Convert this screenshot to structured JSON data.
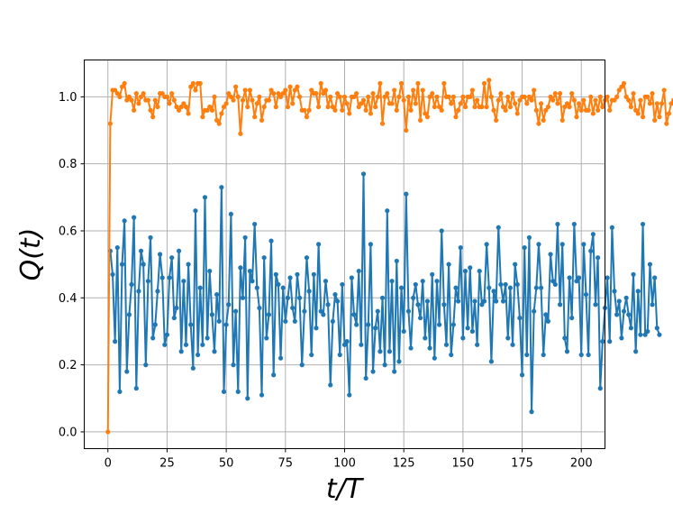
{
  "chart_data": {
    "type": "line",
    "title": "",
    "xlabel": "t/T",
    "ylabel": "Q(t)",
    "xlim": [
      -10,
      210
    ],
    "ylim": [
      -0.05,
      1.11
    ],
    "xticks": [
      0,
      25,
      50,
      75,
      100,
      125,
      150,
      175,
      200
    ],
    "yticks": [
      0.0,
      0.2,
      0.4,
      0.6,
      0.8,
      1.0
    ],
    "xtick_labels": [
      "0",
      "25",
      "50",
      "75",
      "100",
      "125",
      "150",
      "175",
      "200"
    ],
    "ytick_labels": [
      "0.0",
      "0.2",
      "0.4",
      "0.6",
      "0.8",
      "1.0"
    ],
    "grid": true,
    "markers": true,
    "series": [
      {
        "color": "#1f77b4",
        "x_start": 1,
        "x_step": 1,
        "values": [
          0.54,
          0.47,
          0.27,
          0.55,
          0.12,
          0.5,
          0.63,
          0.18,
          0.35,
          0.44,
          0.64,
          0.13,
          0.42,
          0.54,
          0.5,
          0.2,
          0.45,
          0.58,
          0.28,
          0.32,
          0.42,
          0.53,
          0.46,
          0.26,
          0.29,
          0.46,
          0.52,
          0.34,
          0.37,
          0.54,
          0.24,
          0.45,
          0.26,
          0.5,
          0.32,
          0.19,
          0.66,
          0.23,
          0.43,
          0.26,
          0.7,
          0.28,
          0.48,
          0.35,
          0.24,
          0.41,
          0.33,
          0.73,
          0.12,
          0.32,
          0.38,
          0.65,
          0.2,
          0.36,
          0.12,
          0.49,
          0.4,
          0.58,
          0.1,
          0.48,
          0.45,
          0.62,
          0.43,
          0.37,
          0.11,
          0.52,
          0.28,
          0.35,
          0.57,
          0.17,
          0.47,
          0.44,
          0.22,
          0.43,
          0.33,
          0.4,
          0.46,
          0.37,
          0.33,
          0.47,
          0.4,
          0.2,
          0.36,
          0.52,
          0.42,
          0.23,
          0.47,
          0.31,
          0.56,
          0.36,
          0.35,
          0.45,
          0.38,
          0.14,
          0.33,
          0.41,
          0.39,
          0.23,
          0.44,
          0.26,
          0.27,
          0.11,
          0.46,
          0.35,
          0.32,
          0.48,
          0.26,
          0.77,
          0.16,
          0.32,
          0.56,
          0.18,
          0.31,
          0.36,
          0.24,
          0.4,
          0.2,
          0.66,
          0.24,
          0.45,
          0.18,
          0.51,
          0.21,
          0.43,
          0.3,
          0.71,
          0.36,
          0.25,
          0.4,
          0.44,
          0.38,
          0.34,
          0.45,
          0.28,
          0.39,
          0.25,
          0.47,
          0.22,
          0.45,
          0.32,
          0.6,
          0.38,
          0.26,
          0.5,
          0.23,
          0.32,
          0.43,
          0.39,
          0.55,
          0.28,
          0.48,
          0.31,
          0.49,
          0.3,
          0.39,
          0.26,
          0.48,
          0.38,
          0.39,
          0.56,
          0.43,
          0.21,
          0.42,
          0.39,
          0.61,
          0.44,
          0.39,
          0.44,
          0.28,
          0.43,
          0.26,
          0.5,
          0.44,
          0.34,
          0.17,
          0.55,
          0.23,
          0.58,
          0.06,
          0.36,
          0.43,
          0.56,
          0.43,
          0.23,
          0.35,
          0.33,
          0.53,
          0.45,
          0.44,
          0.62,
          0.38,
          0.56,
          0.28,
          0.24,
          0.46,
          0.34,
          0.62,
          0.45,
          0.46,
          0.23,
          0.56,
          0.41,
          0.23,
          0.54,
          0.59,
          0.38,
          0.52,
          0.13,
          0.27,
          0.37,
          0.46,
          0.27,
          0.61,
          0.42,
          0.35,
          0.39,
          0.28,
          0.36,
          0.4,
          0.35,
          0.31,
          0.47,
          0.24,
          0.42,
          0.29,
          0.62,
          0.29,
          0.3,
          0.5,
          0.38,
          0.46,
          0.31,
          0.29
        ]
      },
      {
        "color": "#ff7f0e",
        "x_start": 0,
        "x_step": 1,
        "values": [
          0.0,
          0.92,
          1.02,
          1.02,
          1.01,
          1.0,
          1.03,
          1.04,
          0.99,
          1.0,
          0.99,
          0.96,
          1.01,
          0.98,
          1.0,
          1.01,
          0.99,
          0.99,
          0.96,
          0.94,
          0.99,
          0.97,
          1.01,
          1.01,
          1.0,
          1.0,
          0.98,
          1.01,
          0.99,
          0.97,
          0.96,
          0.97,
          0.98,
          0.97,
          0.95,
          1.03,
          1.04,
          1.02,
          1.04,
          1.04,
          0.94,
          0.96,
          0.96,
          0.97,
          0.96,
          1.0,
          0.93,
          0.92,
          0.95,
          0.97,
          0.98,
          1.01,
          1.0,
          0.99,
          1.03,
          1.0,
          0.89,
          0.99,
          1.02,
          0.97,
          1.02,
          0.99,
          0.94,
          0.98,
          1.0,
          0.93,
          0.97,
          0.99,
          0.99,
          1.02,
          1.01,
          0.97,
          1.01,
          1.0,
          1.01,
          1.02,
          0.97,
          1.03,
          0.98,
          1.02,
          1.03,
          1.0,
          0.96,
          0.96,
          0.94,
          0.96,
          1.02,
          1.01,
          1.01,
          0.97,
          1.04,
          1.01,
          1.02,
          0.97,
          1.0,
          0.97,
          0.96,
          1.01,
          1.0,
          0.96,
          1.0,
          0.98,
          0.95,
          1.0,
          1.0,
          1.01,
          0.97,
          0.98,
          0.99,
          0.96,
          1.0,
          0.95,
          1.01,
          0.97,
          1.0,
          1.04,
          0.92,
          1.0,
          1.01,
          0.98,
          0.98,
          1.02,
          0.96,
          1.0,
          1.04,
          0.99,
          0.9,
          1.0,
          0.96,
          1.02,
          0.98,
          1.04,
          0.93,
          1.02,
          0.95,
          0.94,
          1.0,
          1.01,
          0.97,
          1.0,
          0.97,
          0.96,
          1.04,
          1.0,
          1.0,
          0.98,
          1.0,
          0.94,
          0.96,
          0.98,
          1.0,
          0.97,
          1.0,
          1.0,
          1.02,
          0.97,
          0.99,
          0.97,
          0.97,
          1.04,
          0.97,
          1.05,
          1.0,
          0.96,
          0.93,
          0.99,
          1.01,
          0.97,
          0.96,
          1.0,
          0.97,
          1.01,
          0.98,
          0.95,
          0.99,
          1.0,
          1.0,
          0.98,
          1.0,
          0.99,
          1.02,
          0.96,
          0.92,
          0.98,
          0.93,
          0.96,
          0.97,
          1.0,
          0.99,
          1.01,
          0.98,
          1.01,
          0.93,
          0.97,
          0.98,
          0.97,
          1.01,
          0.99,
          0.94,
          0.98,
          0.96,
          0.99,
          0.96,
          0.96,
          1.0,
          0.95,
          0.99,
          0.96,
          1.0,
          0.97,
          0.99,
          1.0,
          0.96,
          0.99,
          0.99,
          1.0,
          1.02,
          1.03,
          1.04,
          1.0,
          0.99,
          0.97,
          1.01,
          0.96,
          0.95,
          0.99,
          0.94,
          1.0,
          1.0,
          0.98,
          1.01,
          0.93,
          0.98,
          0.94,
          0.98,
          1.02,
          0.92,
          0.95,
          0.98,
          0.99,
          0.93,
          0.95,
          0.97,
          0.95,
          0.99,
          0.98,
          0.98
        ]
      }
    ]
  }
}
